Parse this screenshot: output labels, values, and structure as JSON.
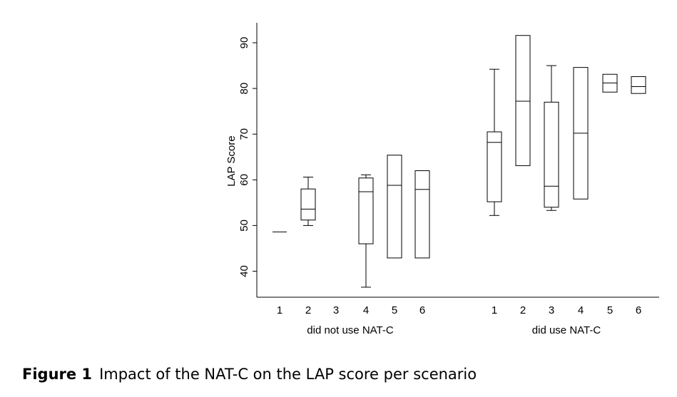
{
  "chart_data": {
    "type": "boxplot",
    "ylabel": "LAP Score",
    "ylim": [
      34,
      94
    ],
    "yticks": [
      40,
      50,
      60,
      70,
      80,
      90
    ],
    "groups": [
      {
        "label": "did not use NAT-C",
        "boxes": [
          {
            "name": "1",
            "min": 48.6,
            "q1": 48.6,
            "median": 48.6,
            "q3": 48.6,
            "max": 48.6
          },
          {
            "name": "2",
            "min": 50.0,
            "q1": 51.2,
            "median": 53.6,
            "q3": 58.0,
            "max": 60.6
          },
          {
            "name": "3",
            "min": null,
            "q1": null,
            "median": null,
            "q3": null,
            "max": null
          },
          {
            "name": "4",
            "min": 36.5,
            "q1": 46.0,
            "median": 57.4,
            "q3": 60.4,
            "max": 61.1
          },
          {
            "name": "5",
            "min": 42.9,
            "q1": 42.9,
            "median": 58.8,
            "q3": 65.4,
            "max": 65.4
          },
          {
            "name": "6",
            "min": 42.9,
            "q1": 42.9,
            "median": 57.9,
            "q3": 62.0,
            "max": 62.0
          }
        ]
      },
      {
        "label": "did use NAT-C",
        "boxes": [
          {
            "name": "1",
            "min": 52.2,
            "q1": 55.2,
            "median": 68.2,
            "q3": 70.5,
            "max": 84.2
          },
          {
            "name": "2",
            "min": 63.1,
            "q1": 63.1,
            "median": 77.2,
            "q3": 91.6,
            "max": 91.6
          },
          {
            "name": "3",
            "min": 53.3,
            "q1": 54.0,
            "median": 58.6,
            "q3": 77.0,
            "max": 85.0
          },
          {
            "name": "4",
            "min": 55.8,
            "q1": 55.8,
            "median": 70.2,
            "q3": 84.6,
            "max": 84.6
          },
          {
            "name": "5",
            "min": 79.2,
            "q1": 79.2,
            "median": 81.2,
            "q3": 83.1,
            "max": 83.1
          },
          {
            "name": "6",
            "min": 78.9,
            "q1": 78.9,
            "median": 80.4,
            "q3": 82.6,
            "max": 82.6
          }
        ]
      }
    ]
  },
  "caption": {
    "label": "Figure 1",
    "text": "Impact of the NAT-C on the LAP score per scenario"
  }
}
